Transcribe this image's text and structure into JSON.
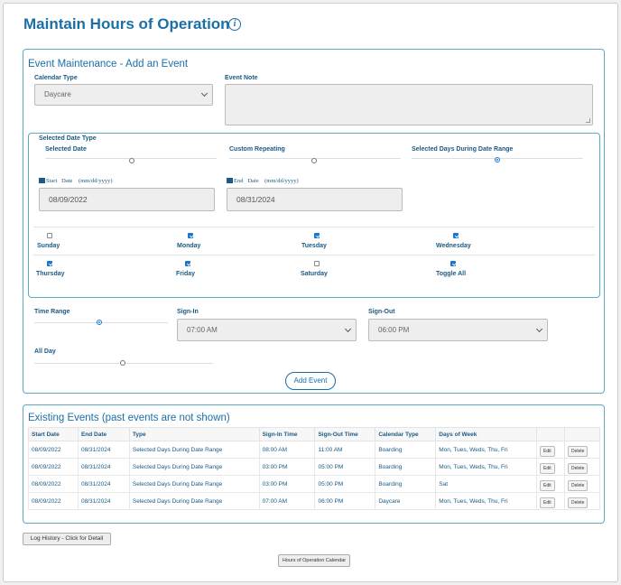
{
  "page": {
    "title": "Maintain Hours of Operation",
    "info_icon": "info-icon"
  },
  "event_maintenance": {
    "title": "Event Maintenance - Add an Event",
    "calendar_type_label": "Calendar Type",
    "calendar_type_value": "Daycare",
    "event_note_label": "Event Note",
    "event_note_value": "",
    "date_type": {
      "legend": "Selected Date Type",
      "options": [
        {
          "label": "Selected Date",
          "checked": false
        },
        {
          "label": "Custom Repeating",
          "checked": false
        },
        {
          "label": "Selected Days During Date Range",
          "checked": true
        }
      ],
      "start_label": "Start",
      "end_label": "End",
      "date_word": "Date",
      "date_format": "(mm/dd/yyyy)",
      "start_value": "08/09/2022",
      "end_value": "08/31/2024",
      "days_row1": [
        {
          "label": "Sunday",
          "checked": false
        },
        {
          "label": "Monday",
          "checked": true
        },
        {
          "label": "Tuesday",
          "checked": true
        },
        {
          "label": "Wednesday",
          "checked": true
        }
      ],
      "days_row2": [
        {
          "label": "Thursday",
          "checked": true
        },
        {
          "label": "Friday",
          "checked": true
        },
        {
          "label": "Saturday",
          "checked": false
        },
        {
          "label": "Toggle All",
          "checked": true
        }
      ]
    },
    "time_range_label": "Time Range",
    "sign_in_label": "Sign-In",
    "sign_in_value": "07:00 AM",
    "sign_out_label": "Sign-Out",
    "sign_out_value": "06:00 PM",
    "all_day_label": "All Day",
    "add_event_label": "Add Event"
  },
  "existing_events": {
    "title": "Existing Events (past events are not shown)",
    "columns": [
      "Start Date",
      "End Date",
      "Type",
      "Sign-In Time",
      "Sign-Out Time",
      "Calendar Type",
      "Days of Week",
      "",
      ""
    ],
    "edit_label": "Edit",
    "delete_label": "Delete",
    "rows": [
      [
        "08/09/2022",
        "08/31/2024",
        "Selected Days During Date Range",
        "08:00 AM",
        "11:00 AM",
        "Boarding",
        "Mon, Tues, Weds, Thu, Fri"
      ],
      [
        "08/09/2022",
        "08/31/2024",
        "Selected Days During Date Range",
        "03:00 PM",
        "05:00 PM",
        "Boarding",
        "Mon, Tues, Weds, Thu, Fri"
      ],
      [
        "08/09/2022",
        "08/31/2024",
        "Selected Days During Date Range",
        "03:00 PM",
        "05:00 PM",
        "Boarding",
        "Sat"
      ],
      [
        "08/09/2022",
        "08/31/2024",
        "Selected Days During Date Range",
        "07:00 AM",
        "06:00 PM",
        "Daycare",
        "Mon, Tues, Weds, Thu, Fri"
      ]
    ]
  },
  "footer": {
    "log_history_label": "Log History - Click for Detail",
    "calendar_button_label": "Hours of Operation Calendar"
  },
  "colors": {
    "accent": "#1b6fa6",
    "panel_border": "#5ea9c9",
    "checkbox": "#1976d2"
  }
}
